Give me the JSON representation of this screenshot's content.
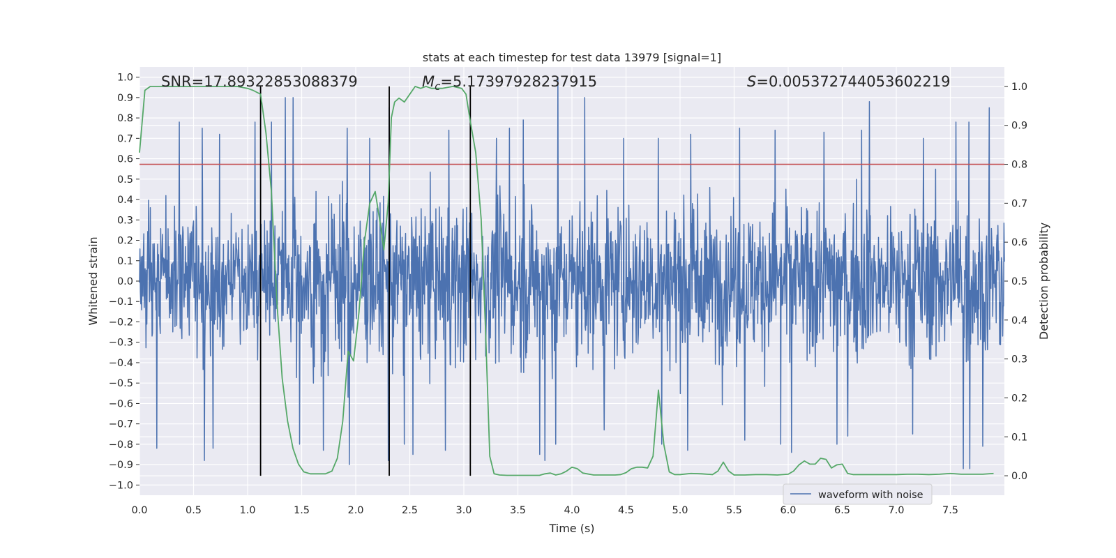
{
  "chart_data": {
    "type": "line",
    "title": "stats at each timestep for test data 13979 [signal=1]",
    "xlabel": "Time (s)",
    "ylabel": "Whitened strain",
    "ylabel_right": "Detection probability",
    "xlim": [
      0,
      8
    ],
    "ylim": [
      -1.05,
      1.05
    ],
    "ylim_right": [
      -0.05,
      1.05
    ],
    "x_ticks": [
      0.0,
      0.5,
      1.0,
      1.5,
      2.0,
      2.5,
      3.0,
      3.5,
      4.0,
      4.5,
      5.0,
      5.5,
      6.0,
      6.5,
      7.0,
      7.5
    ],
    "x_tick_labels": [
      "0.0",
      "0.5",
      "1.0",
      "1.5",
      "2.0",
      "2.5",
      "3.0",
      "3.5",
      "4.0",
      "4.5",
      "5.0",
      "5.5",
      "6.0",
      "6.5",
      "7.0",
      "7.5"
    ],
    "y_ticks": [
      -1.0,
      -0.9,
      -0.8,
      -0.7,
      -0.6,
      -0.5,
      -0.4,
      -0.3,
      -0.2,
      -0.1,
      0.0,
      0.1,
      0.2,
      0.3,
      0.4,
      0.5,
      0.6,
      0.7,
      0.8,
      0.9,
      1.0
    ],
    "y_tick_labels": [
      "−1.0",
      "−0.9",
      "−0.8",
      "−0.7",
      "−0.6",
      "−0.5",
      "−0.4",
      "−0.3",
      "−0.2",
      "−0.1",
      "0.0",
      "0.1",
      "0.2",
      "0.3",
      "0.4",
      "0.5",
      "0.6",
      "0.7",
      "0.8",
      "0.9",
      "1.0"
    ],
    "y_right_ticks": [
      0.0,
      0.1,
      0.2,
      0.3,
      0.4,
      0.5,
      0.6,
      0.7,
      0.8,
      0.9,
      1.0
    ],
    "y_right_tick_labels": [
      "0.0",
      "0.1",
      "0.2",
      "0.3",
      "0.4",
      "0.5",
      "0.6",
      "0.7",
      "0.8",
      "0.9",
      "1.0"
    ],
    "grid": true,
    "legend": {
      "placement": "lower-right",
      "entries": [
        "waveform with noise"
      ]
    },
    "annotations": {
      "snr": {
        "prefix": "SNR=",
        "value": "17.89322853088379"
      },
      "mc": {
        "symbol": "M",
        "sub": "c",
        "value": "=5.17397928237915"
      },
      "s": {
        "symbol": "S",
        "value": "=0.005372744053602219"
      }
    },
    "waveform": {
      "name": "waveform with noise",
      "color": "#4c72b0",
      "duration": 8.0,
      "samples": 2000,
      "spikes": [
        [
          0.37,
          0.78
        ],
        [
          0.58,
          0.75
        ],
        [
          0.74,
          0.72
        ],
        [
          1.07,
          0.78
        ],
        [
          1.22,
          0.78
        ],
        [
          1.35,
          0.9
        ],
        [
          1.42,
          0.9
        ],
        [
          1.7,
          0.66
        ],
        [
          1.92,
          0.75
        ],
        [
          2.13,
          0.7
        ],
        [
          2.31,
          0.85
        ],
        [
          2.86,
          0.74
        ],
        [
          3.3,
          0.7
        ],
        [
          3.42,
          0.75
        ],
        [
          3.55,
          0.79
        ],
        [
          3.87,
          1.0
        ],
        [
          4.12,
          0.9
        ],
        [
          4.48,
          0.7
        ],
        [
          4.8,
          0.7
        ],
        [
          5.1,
          0.72
        ],
        [
          5.55,
          0.75
        ],
        [
          5.88,
          0.74
        ],
        [
          6.03,
          0.75
        ],
        [
          6.33,
          0.73
        ],
        [
          6.68,
          0.74
        ],
        [
          6.75,
          0.88
        ],
        [
          7.25,
          0.7
        ],
        [
          7.55,
          0.78
        ],
        [
          7.67,
          0.78
        ],
        [
          7.86,
          0.85
        ],
        [
          0.6,
          -0.88
        ],
        [
          0.68,
          -0.82
        ],
        [
          1.48,
          -0.8
        ],
        [
          1.7,
          -0.83
        ],
        [
          1.94,
          -0.9
        ],
        [
          2.3,
          -0.88
        ],
        [
          2.53,
          -0.85
        ],
        [
          2.83,
          -0.83
        ],
        [
          3.7,
          -0.85
        ],
        [
          3.75,
          -0.88
        ],
        [
          3.85,
          -0.8
        ],
        [
          4.83,
          -0.8
        ],
        [
          5.07,
          -0.83
        ],
        [
          5.93,
          -0.8
        ],
        [
          6.03,
          -0.84
        ],
        [
          6.45,
          -0.8
        ],
        [
          7.62,
          -0.92
        ],
        [
          7.68,
          -0.92
        ],
        [
          7.8,
          -0.81
        ],
        [
          7.15,
          -0.75
        ],
        [
          0.16,
          -0.82
        ],
        [
          2.45,
          -0.8
        ],
        [
          6.55,
          -0.76
        ],
        [
          4.3,
          -0.73
        ],
        [
          5.6,
          -0.78
        ]
      ]
    },
    "threshold": {
      "value": 0.8,
      "color": "#c44e52"
    },
    "markers": {
      "x": [
        1.12,
        2.31,
        3.06
      ],
      "ymin": 0.0,
      "ymax": 1.0,
      "color": "#000000"
    },
    "probability": {
      "color": "#55a868",
      "x": [
        0.0,
        0.05,
        0.1,
        0.2,
        0.3,
        0.5,
        0.7,
        0.9,
        1.0,
        1.05,
        1.12,
        1.17,
        1.22,
        1.27,
        1.32,
        1.37,
        1.42,
        1.47,
        1.52,
        1.58,
        1.65,
        1.72,
        1.78,
        1.83,
        1.88,
        1.93,
        1.98,
        2.03,
        2.08,
        2.13,
        2.18,
        2.22,
        2.26,
        2.3,
        2.33,
        2.36,
        2.4,
        2.45,
        2.5,
        2.55,
        2.6,
        2.65,
        2.7,
        2.8,
        2.9,
        2.98,
        3.02,
        3.06,
        3.11,
        3.16,
        3.2,
        3.24,
        3.28,
        3.33,
        3.4,
        3.5,
        3.6,
        3.7,
        3.75,
        3.8,
        3.85,
        3.9,
        3.95,
        4.0,
        4.05,
        4.1,
        4.2,
        4.3,
        4.4,
        4.45,
        4.5,
        4.55,
        4.6,
        4.65,
        4.7,
        4.75,
        4.8,
        4.85,
        4.9,
        4.95,
        5.0,
        5.1,
        5.2,
        5.3,
        5.35,
        5.4,
        5.45,
        5.5,
        5.6,
        5.7,
        5.8,
        5.9,
        6.0,
        6.05,
        6.1,
        6.15,
        6.2,
        6.25,
        6.3,
        6.35,
        6.4,
        6.45,
        6.5,
        6.55,
        6.6,
        6.65,
        6.7,
        6.8,
        6.9,
        7.0,
        7.1,
        7.2,
        7.3,
        7.4,
        7.5,
        7.6,
        7.7,
        7.8,
        7.9
      ],
      "y": [
        0.83,
        0.99,
        1.0,
        1.0,
        1.0,
        1.0,
        1.0,
        1.0,
        0.995,
        0.99,
        0.98,
        0.88,
        0.73,
        0.45,
        0.25,
        0.14,
        0.07,
        0.03,
        0.01,
        0.005,
        0.005,
        0.005,
        0.012,
        0.045,
        0.14,
        0.32,
        0.295,
        0.42,
        0.6,
        0.7,
        0.73,
        0.66,
        0.58,
        0.7,
        0.92,
        0.96,
        0.97,
        0.96,
        0.98,
        1.0,
        0.995,
        1.0,
        0.995,
        0.995,
        1.0,
        0.995,
        0.98,
        0.91,
        0.83,
        0.66,
        0.38,
        0.05,
        0.005,
        0.002,
        0.001,
        0.001,
        0.001,
        0.001,
        0.005,
        0.007,
        0.002,
        0.005,
        0.012,
        0.022,
        0.018,
        0.007,
        0.002,
        0.002,
        0.002,
        0.003,
        0.008,
        0.018,
        0.022,
        0.022,
        0.02,
        0.05,
        0.22,
        0.08,
        0.01,
        0.003,
        0.003,
        0.006,
        0.005,
        0.003,
        0.012,
        0.035,
        0.012,
        0.002,
        0.002,
        0.003,
        0.003,
        0.002,
        0.004,
        0.012,
        0.028,
        0.038,
        0.03,
        0.03,
        0.045,
        0.042,
        0.02,
        0.028,
        0.03,
        0.006,
        0.003,
        0.003,
        0.003,
        0.003,
        0.003,
        0.003,
        0.004,
        0.004,
        0.003,
        0.004,
        0.006,
        0.004,
        0.004,
        0.004,
        0.006
      ]
    }
  }
}
